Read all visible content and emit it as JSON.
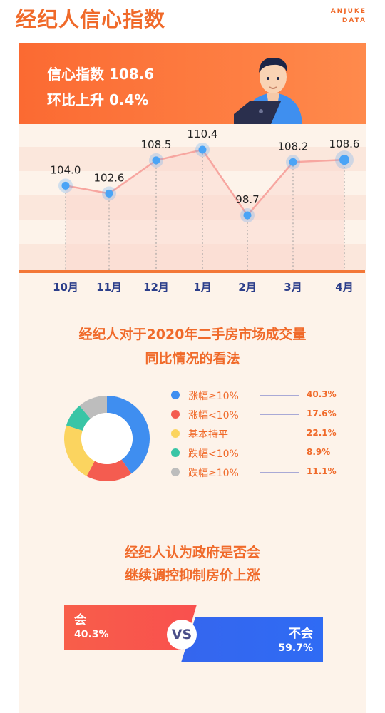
{
  "header": {
    "title": "经纪人信心指数",
    "brand_line1": "ANJUKE",
    "brand_line2": "DATA"
  },
  "banner": {
    "line1": "信心指数 108.6",
    "line2": "环比上升 0.4%"
  },
  "chart_data": [
    {
      "type": "line",
      "categories": [
        "10月",
        "11月",
        "12月",
        "1月",
        "2月",
        "3月",
        "4月"
      ],
      "values": [
        104.0,
        102.6,
        108.5,
        110.4,
        98.7,
        108.2,
        108.6
      ],
      "value_labels": [
        "104.0",
        "102.6",
        "108.5",
        "110.4",
        "98.7",
        "108.2",
        "108.6"
      ],
      "title": "",
      "xlabel": "",
      "ylabel": "",
      "colors": {
        "line": "#f7a6a0",
        "point": "#4aa4f6",
        "area": "#fcd8d0"
      }
    },
    {
      "type": "pie",
      "title": "经纪人对于2020年二手房市场成交量同比情况的看法",
      "title_lines": [
        "经纪人对于2020年二手房市场成交量",
        "同比情况的看法"
      ],
      "categories": [
        "涨幅≥10%",
        "涨幅<10%",
        "基本持平",
        "跌幅<10%",
        "跌幅≥10%"
      ],
      "values": [
        40.3,
        17.6,
        22.1,
        8.9,
        11.1
      ],
      "value_labels": [
        "40.3%",
        "17.6%",
        "22.1%",
        "8.9%",
        "11.1%"
      ],
      "colors": [
        "#3f8ef0",
        "#f45c50",
        "#fbd45f",
        "#39c5a6",
        "#bdbdbd"
      ],
      "legend": "right"
    },
    {
      "type": "bar",
      "title": "经纪人认为政府是否会继续调控抑制房价上涨",
      "title_lines": [
        "经纪人认为政府是否会",
        "继续调控抑制房价上涨"
      ],
      "categories": [
        "会",
        "不会"
      ],
      "values": [
        40.3,
        59.7
      ],
      "value_labels": [
        "40.3%",
        "59.7%"
      ],
      "separator": "VS",
      "colors": [
        "#f85a4a",
        "#3168f0"
      ]
    }
  ]
}
